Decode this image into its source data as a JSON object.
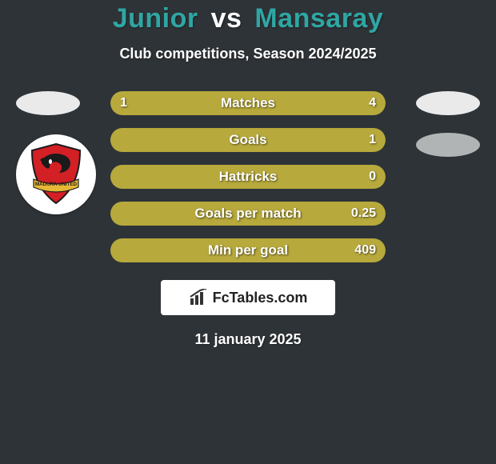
{
  "background_color": "#2e3337",
  "title": {
    "player1": "Junior",
    "vs": "vs",
    "player2": "Mansaray",
    "player1_color": "#2fa6a3",
    "vs_color": "#ffffff",
    "player2_color": "#2fa6a3"
  },
  "subtitle": {
    "text": "Club competitions, Season 2024/2025",
    "color": "#ffffff"
  },
  "date": {
    "text": "11 january 2025",
    "color": "#ffffff"
  },
  "badges": {
    "left_top_color": "#eaeaea",
    "right_top_color": "#eaeaea",
    "right_second_color": "#b1b4b5"
  },
  "team_logo": {
    "bg": "#ffffff",
    "crest_red": "#d32025",
    "crest_black": "#1a1a1a",
    "crest_gold": "#e6b836",
    "banner_text": "MADURA UNITED"
  },
  "brand": {
    "bg": "#ffffff",
    "icon_color": "#333333",
    "text_color": "#222222",
    "text": "FcTables.com"
  },
  "bars": {
    "track_color": "#343a3d",
    "fill_color": "#b7a93c",
    "label_color": "#ffffff",
    "items": [
      {
        "label": "Matches",
        "left": "1",
        "right": "4",
        "left_pct": 18,
        "right_pct": 82
      },
      {
        "label": "Goals",
        "left": "",
        "right": "1",
        "left_pct": 0,
        "right_pct": 100
      },
      {
        "label": "Hattricks",
        "left": "",
        "right": "0",
        "left_pct": 0,
        "right_pct": 100
      },
      {
        "label": "Goals per match",
        "left": "",
        "right": "0.25",
        "left_pct": 0,
        "right_pct": 100
      },
      {
        "label": "Min per goal",
        "left": "",
        "right": "409",
        "left_pct": 0,
        "right_pct": 100
      }
    ]
  }
}
